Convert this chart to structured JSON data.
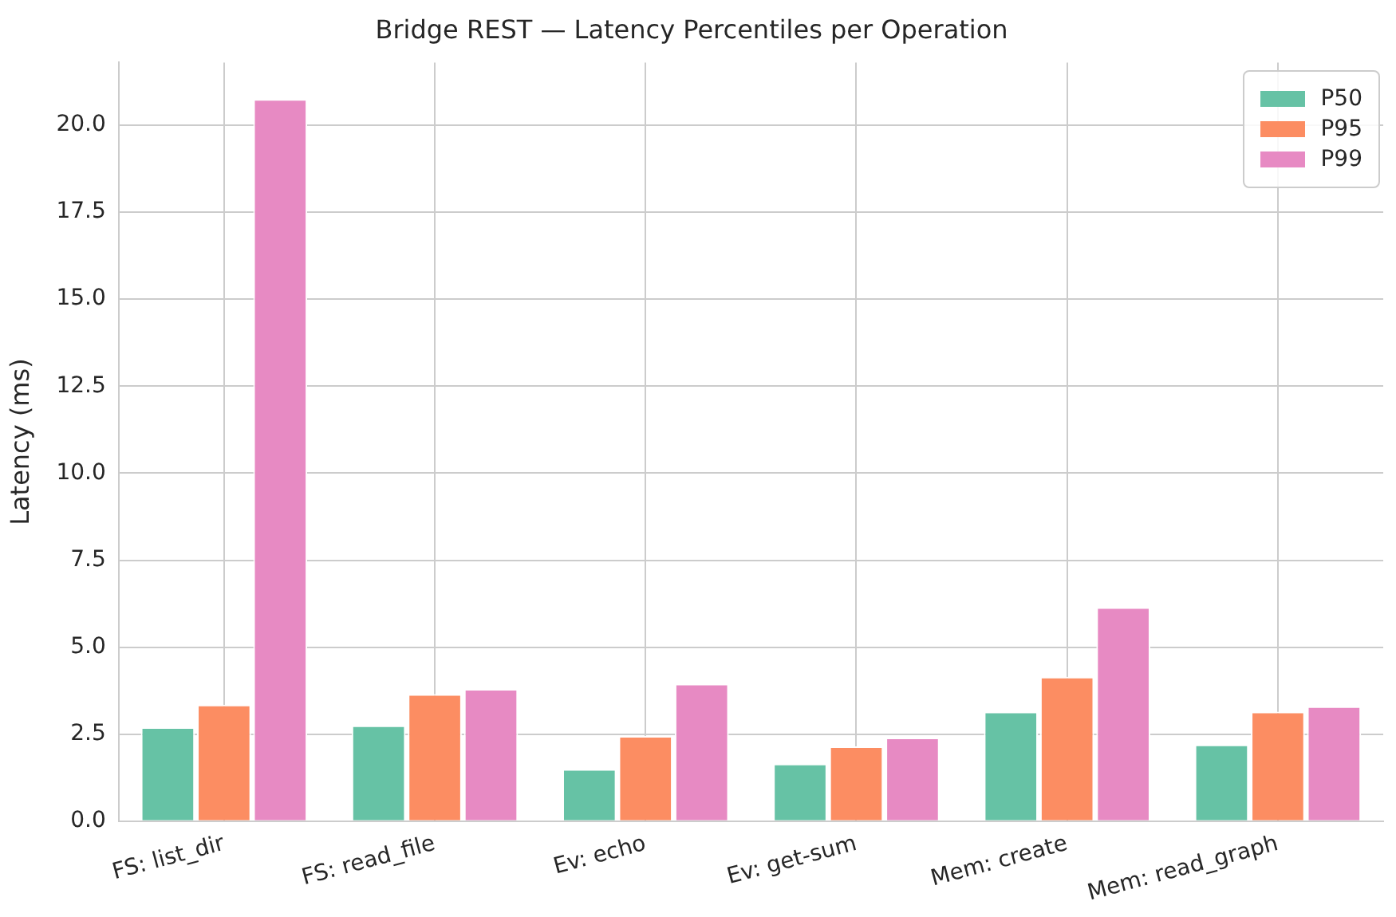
{
  "chart_data": {
    "type": "bar",
    "title": "Bridge REST — Latency Percentiles per Operation",
    "ylabel": "Latency (ms)",
    "categories": [
      "FS: list_dir",
      "FS: read_file",
      "Ev: echo",
      "Ev: get-sum",
      "Mem: create",
      "Mem: read_graph"
    ],
    "series": [
      {
        "name": "P50",
        "color": "#66c2a5",
        "values": [
          2.7,
          2.75,
          1.5,
          1.65,
          3.15,
          2.2
        ]
      },
      {
        "name": "P95",
        "color": "#fc8d62",
        "values": [
          3.35,
          3.65,
          2.45,
          2.15,
          4.15,
          3.15
        ]
      },
      {
        "name": "P99",
        "color": "#e78ac3",
        "values": [
          20.75,
          3.8,
          3.95,
          2.4,
          6.15,
          3.3
        ]
      }
    ],
    "ylim": [
      0,
      21.8
    ],
    "yticks": [
      {
        "value": 0,
        "label": "0.0"
      },
      {
        "value": 2.5,
        "label": "2.5"
      },
      {
        "value": 5,
        "label": "5.0"
      },
      {
        "value": 7.5,
        "label": "7.5"
      },
      {
        "value": 10,
        "label": "10.0"
      },
      {
        "value": 12.5,
        "label": "12.5"
      },
      {
        "value": 15,
        "label": "15.0"
      },
      {
        "value": 17.5,
        "label": "17.5"
      },
      {
        "value": 20,
        "label": "20.0"
      }
    ],
    "grid": true,
    "legend": "top right"
  }
}
